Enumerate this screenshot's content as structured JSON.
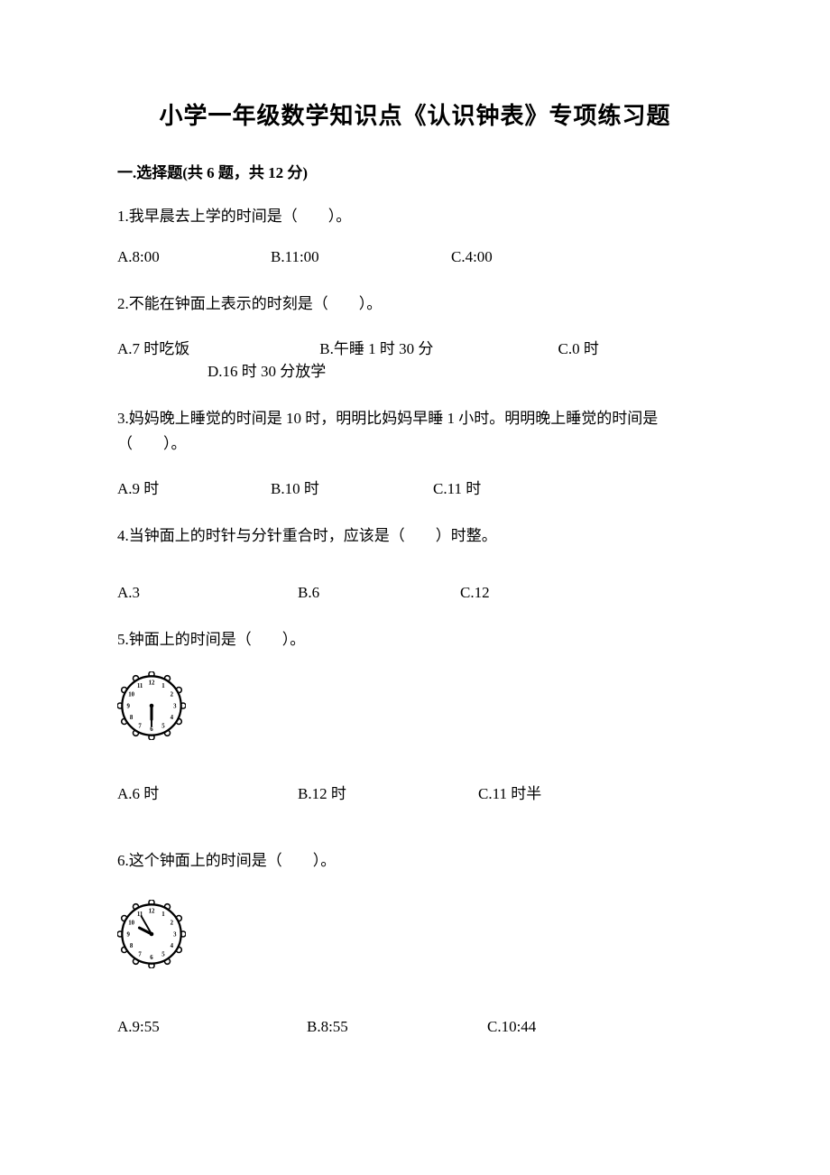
{
  "title": "小学一年级数学知识点《认识钟表》专项练习题",
  "section": {
    "label": "一.选择题(共 6 题，共 12 分)"
  },
  "questions": {
    "q1": {
      "text": "1.我早晨去上学的时间是（　　）。",
      "a": "A.8:00",
      "b": "B.11:00",
      "c": "C.4:00"
    },
    "q2": {
      "text": "2.不能在钟面上表示的时刻是（　　）。",
      "a": "A.7 时吃饭",
      "b": "B.午睡 1 时 30 分",
      "c": "C.0 时",
      "d": "D.16 时 30 分放学"
    },
    "q3": {
      "text": "3.妈妈晚上睡觉的时间是 10 时，明明比妈妈早睡 1 小时。明明晚上睡觉的时间是（　　）。",
      "a": "A.9 时",
      "b": "B.10 时",
      "c": "C.11 时"
    },
    "q4": {
      "text": "4.当钟面上的时针与分针重合时，应该是（　　）时整。",
      "a": "A.3",
      "b": "B.6",
      "c": "C.12"
    },
    "q5": {
      "text": "5.钟面上的时间是（　　）。",
      "a": "A.6 时",
      "b": "B.12 时",
      "c": "C.11 时半"
    },
    "q6": {
      "text": "6.这个钟面上的时间是（　　）。",
      "a": "A.9:55",
      "b": "B.8:55",
      "c": "C.10:44"
    }
  },
  "clocks": {
    "clock1": {
      "hour_angle": 180,
      "minute_angle": 180,
      "face_color": "#ffffff",
      "border_color": "#000000",
      "tick_color": "#000000",
      "hand_color": "#000000"
    },
    "clock2": {
      "hour_angle": 297,
      "minute_angle": 330,
      "face_color": "#ffffff",
      "border_color": "#000000",
      "tick_color": "#000000",
      "hand_color": "#000000"
    }
  }
}
